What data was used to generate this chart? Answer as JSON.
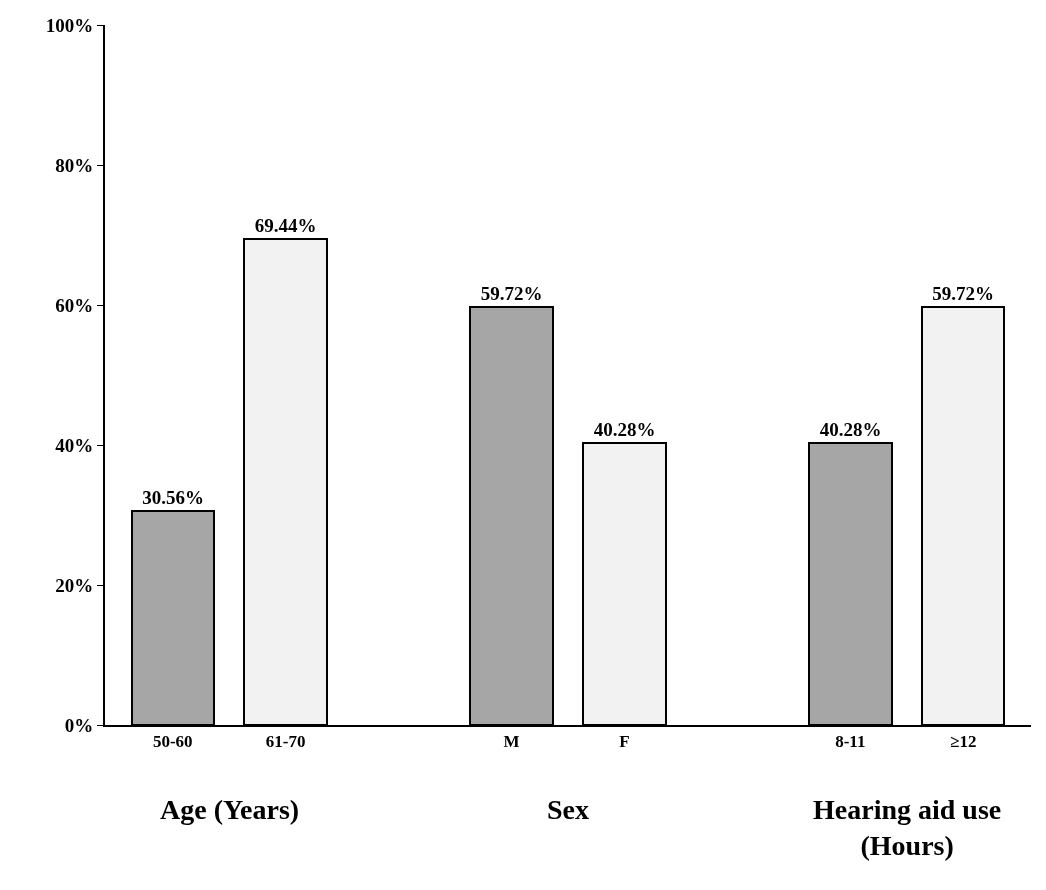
{
  "chart_data": {
    "type": "bar",
    "categories": [
      "50-60",
      "61-70",
      null,
      "M",
      "F",
      null,
      "8-11",
      "≥12"
    ],
    "values": [
      30.56,
      69.44,
      null,
      59.72,
      40.28,
      null,
      40.28,
      59.72
    ],
    "value_labels": [
      "30.56%",
      "69.44%",
      null,
      "59.72%",
      "40.28%",
      null,
      "40.28%",
      "59.72%"
    ],
    "colors": [
      "#a6a6a6",
      "#f2f2f2",
      null,
      "#a6a6a6",
      "#f2f2f2",
      null,
      "#a6a6a6",
      "#f2f2f2"
    ],
    "ylim": [
      0,
      100
    ],
    "yticks": [
      {
        "value": 0,
        "label": "0%"
      },
      {
        "value": 20,
        "label": "20%"
      },
      {
        "value": 40,
        "label": "40%"
      },
      {
        "value": 60,
        "label": "60%"
      },
      {
        "value": 80,
        "label": "80%"
      },
      {
        "value": 100,
        "label": "100%"
      }
    ],
    "annotations": [
      "Age (Years)",
      "Sex",
      "Hearing aid use (Hours)"
    ],
    "grid": false
  }
}
